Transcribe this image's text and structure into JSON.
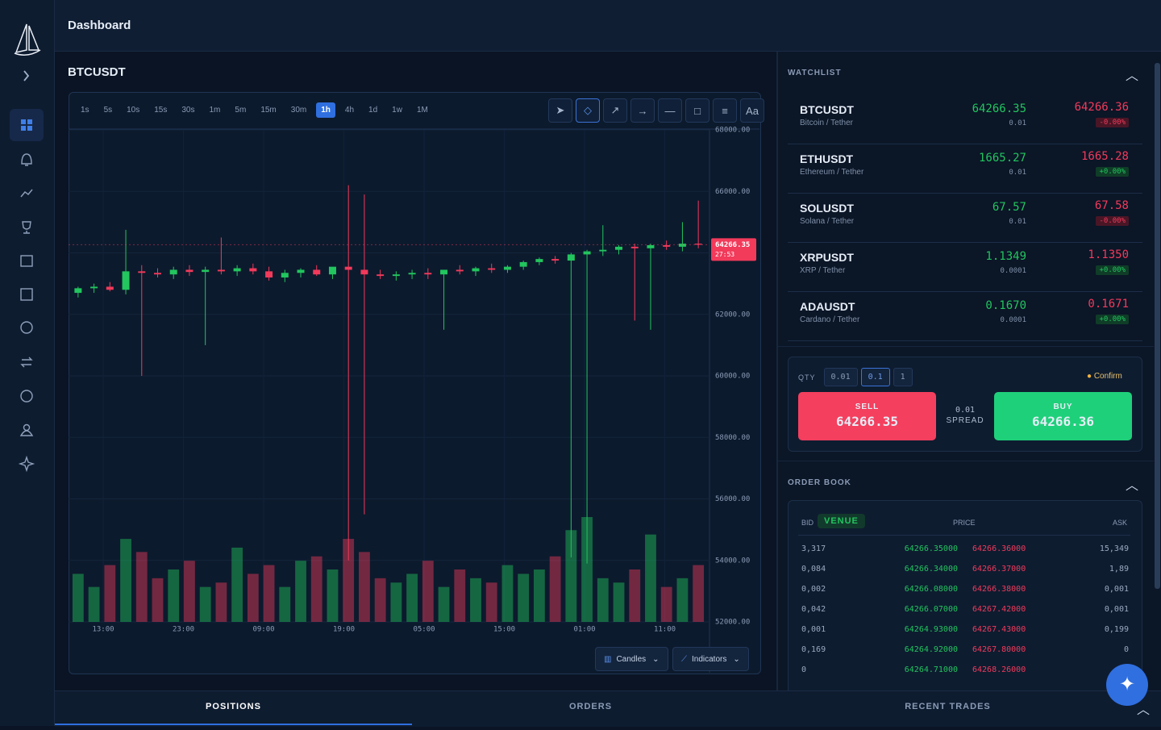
{
  "header": {
    "title": "Dashboard"
  },
  "chart_panel": {
    "symbol": "BTCUSDT",
    "timeframes": [
      "1s",
      "5s",
      "10s",
      "15s",
      "30s",
      "1m",
      "5m",
      "15m",
      "30m",
      "1h",
      "4h",
      "1d",
      "1w",
      "1M"
    ],
    "active_timeframe": "1h",
    "tools_font_label": "Aa",
    "chart_type_button": "Candles",
    "indicators_button": "Indicators",
    "price_tag": {
      "price": "64266.35",
      "countdown": "27:53"
    }
  },
  "chart_data": {
    "type": "candlestick",
    "xtick_labels": [
      "13:00",
      "23:00",
      "09:00",
      "19:00",
      "05:00",
      "15:00",
      "01:00",
      "11:00"
    ],
    "ylim": [
      52000,
      68000
    ],
    "yticks": [
      {
        "value": 68000,
        "label": "68000.00"
      },
      {
        "value": 66000,
        "label": "66000.00"
      },
      {
        "value": 64000,
        "label": "64000.00"
      },
      {
        "value": 62000,
        "label": "62000.00"
      },
      {
        "value": 60000,
        "label": "60000.00"
      },
      {
        "value": 58000,
        "label": "58000.00"
      },
      {
        "value": 56000,
        "label": "56000.00"
      },
      {
        "value": 54000,
        "label": "54000.00"
      },
      {
        "value": 52000,
        "label": "52000.00"
      }
    ],
    "up_color": "#22c55e",
    "down_color": "#f23a5b",
    "grid": true,
    "open": [
      62700,
      62850,
      62900,
      62800,
      63400,
      63350,
      63300,
      63450,
      63380,
      63450,
      63400,
      63500,
      63400,
      63200,
      63350,
      63450,
      63300,
      63550,
      63450,
      63300,
      63250,
      63300,
      63350,
      63300,
      63450,
      63400,
      63500,
      63450,
      63550,
      63700,
      63800,
      63750,
      63950,
      64050,
      64100,
      64200,
      64150,
      64250,
      64200,
      64300
    ],
    "high": [
      62900,
      63000,
      63050,
      64750,
      63600,
      63500,
      63550,
      63600,
      63550,
      64500,
      63600,
      63650,
      63550,
      63450,
      63500,
      63600,
      63500,
      66200,
      65900,
      63450,
      63400,
      63450,
      63500,
      63450,
      63600,
      63550,
      63650,
      63600,
      63750,
      63850,
      63900,
      64000,
      64100,
      64900,
      64250,
      64300,
      64300,
      64400,
      65000,
      65700
    ],
    "low": [
      62550,
      62700,
      62750,
      62650,
      60000,
      63200,
      63150,
      63250,
      61000,
      63300,
      63250,
      63300,
      63100,
      63050,
      63200,
      63250,
      63150,
      54000,
      55500,
      63150,
      63100,
      63150,
      63150,
      61500,
      63300,
      63250,
      63350,
      63350,
      63450,
      63600,
      63650,
      54100,
      53900,
      63900,
      63950,
      61800,
      61500,
      64100,
      64050,
      64150
    ],
    "close": [
      62850,
      62900,
      62800,
      63400,
      63350,
      63300,
      63450,
      63380,
      63450,
      63400,
      63500,
      63400,
      63200,
      63350,
      63450,
      63300,
      63550,
      63450,
      63300,
      63250,
      63300,
      63350,
      63300,
      63450,
      63400,
      63500,
      63450,
      63550,
      63700,
      63800,
      63750,
      63950,
      64050,
      64100,
      64200,
      64150,
      64250,
      64200,
      64300,
      64266.35
    ],
    "volume": [
      55,
      40,
      65,
      95,
      80,
      50,
      60,
      70,
      40,
      45,
      85,
      55,
      65,
      40,
      70,
      75,
      60,
      95,
      80,
      50,
      45,
      55,
      70,
      40,
      60,
      50,
      45,
      65,
      55,
      60,
      75,
      105,
      120,
      50,
      45,
      60,
      100,
      40,
      50,
      65
    ]
  },
  "watchlist": {
    "title": "WATCHLIST",
    "items": [
      {
        "symbol": "BTCUSDT",
        "name": "Bitcoin / Tether",
        "bid": "64266.35",
        "step": "0.01",
        "ask": "64266.36",
        "change": "-0.00%"
      },
      {
        "symbol": "ETHUSDT",
        "name": "Ethereum / Tether",
        "bid": "1665.27",
        "step": "0.01",
        "ask": "1665.28",
        "change": "+0.00%"
      },
      {
        "symbol": "SOLUSDT",
        "name": "Solana / Tether",
        "bid": "67.57",
        "step": "0.01",
        "ask": "67.58",
        "change": "-0.00%"
      },
      {
        "symbol": "XRPUSDT",
        "name": "XRP / Tether",
        "bid": "1.1349",
        "step": "0.0001",
        "ask": "1.1350",
        "change": "+0.00%"
      },
      {
        "symbol": "ADAUSDT",
        "name": "Cardano / Tether",
        "bid": "0.1670",
        "step": "0.0001",
        "ask": "0.1671",
        "change": "+0.00%"
      }
    ]
  },
  "trade": {
    "qty_label": "QTY",
    "qty_options": [
      "0.01",
      "0.1",
      "1"
    ],
    "selected_qty": "0.1",
    "confirm": "Confirm",
    "sell_label": "SELL",
    "sell_price": "64266.35",
    "spread": "0.01",
    "spread_label": "SPREAD",
    "buy_label": "BUY",
    "buy_price": "64266.36"
  },
  "order_book": {
    "title": "ORDER BOOK",
    "columns": {
      "bid": "BID",
      "venue": "VENUE",
      "price": "PRICE",
      "ask": "ASK"
    },
    "rows": [
      [
        "3,317",
        "64266.35000",
        "64266.36000",
        "15,349"
      ],
      [
        "0,084",
        "64266.34000",
        "64266.37000",
        "1,89"
      ],
      [
        "0,002",
        "64266.08000",
        "64266.38000",
        "0,001"
      ],
      [
        "0,042",
        "64266.07000",
        "64267.42000",
        "0,001"
      ],
      [
        "0,001",
        "64264.93000",
        "64267.43000",
        "0,199"
      ],
      [
        "0,169",
        "64264.92000",
        "64267.80000",
        "0"
      ],
      [
        "0",
        "64264.71000",
        "64268.26000",
        ""
      ]
    ]
  },
  "tabs": [
    "POSITIONS",
    "ORDERS",
    "RECENT TRADES"
  ],
  "active_tab": "POSITIONS"
}
